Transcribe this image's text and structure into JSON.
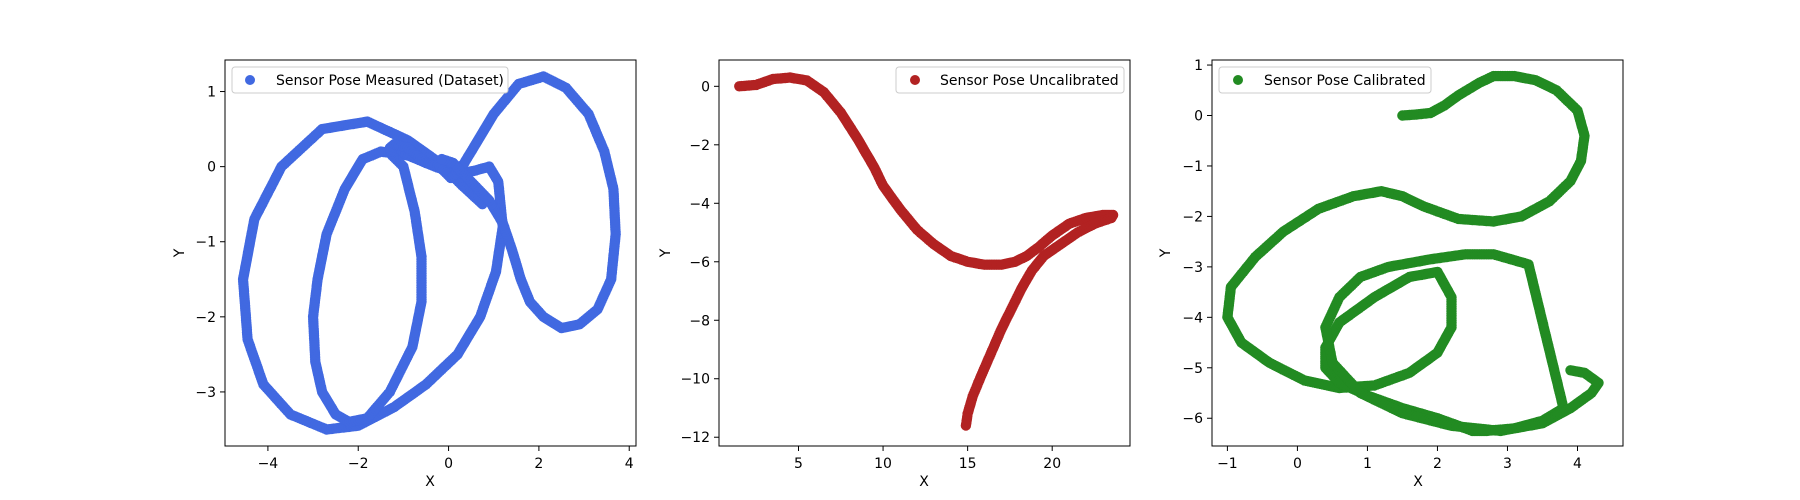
{
  "chart_data": [
    {
      "type": "scatter",
      "title": "",
      "xlabel": "X",
      "ylabel": "Y",
      "xlim": [
        -4.95,
        4.15
      ],
      "ylim": [
        -3.72,
        1.42
      ],
      "xticks": [
        -4,
        -2,
        0,
        2,
        4
      ],
      "yticks": [
        -3,
        -2,
        -1,
        0,
        1
      ],
      "legend_position": "upper-left",
      "series": [
        {
          "name": "Sensor Pose Measured (Dataset)",
          "color": "#4169e1",
          "x": [
            0.75,
            0.3,
            -0.2,
            -0.9,
            -1.8,
            -2.8,
            -3.7,
            -4.3,
            -4.55,
            -4.45,
            -4.1,
            -3.5,
            -2.7,
            -2.0,
            -1.2,
            -0.5,
            0.2,
            0.7,
            1.05,
            1.2,
            1.1,
            0.9,
            0.6,
            0.2,
            -0.3,
            -0.9,
            -1.5,
            -1.9,
            -2.3,
            -2.7,
            -2.9,
            -3.0,
            -2.95,
            -2.8,
            -2.5,
            -2.2,
            -1.8,
            -1.3,
            -0.8,
            -0.6,
            -0.6,
            -0.75,
            -1.0,
            -1.25,
            -1.3,
            -1.2,
            -0.9,
            -0.5,
            -0.2,
            0.05,
            0.15,
            0.35,
            0.6,
            1.0,
            1.55,
            2.1,
            2.6,
            3.1,
            3.45,
            3.65,
            3.7,
            3.6,
            3.3,
            2.9,
            2.5,
            2.1,
            1.8,
            1.6,
            1.4,
            1.2,
            0.9,
            0.5,
            0.1,
            -0.15
          ],
          "y": [
            -0.5,
            -0.25,
            0.05,
            0.35,
            0.6,
            0.5,
            0.0,
            -0.7,
            -1.5,
            -2.3,
            -2.9,
            -3.3,
            -3.5,
            -3.45,
            -3.2,
            -2.9,
            -2.5,
            -2.0,
            -1.4,
            -0.8,
            -0.2,
            0.0,
            -0.05,
            -0.1,
            0.0,
            0.15,
            0.2,
            0.1,
            -0.3,
            -0.9,
            -1.5,
            -2.0,
            -2.6,
            -3.0,
            -3.3,
            -3.4,
            -3.35,
            -3.0,
            -2.4,
            -1.8,
            -1.2,
            -0.6,
            0.0,
            0.15,
            0.25,
            0.3,
            0.25,
            0.05,
            0.0,
            -0.15,
            -0.1,
            0.05,
            0.3,
            0.7,
            1.1,
            1.2,
            1.05,
            0.7,
            0.2,
            -0.3,
            -0.9,
            -1.5,
            -1.9,
            -2.1,
            -2.15,
            -2.0,
            -1.8,
            -1.5,
            -1.1,
            -0.75,
            -0.45,
            -0.2,
            0.05,
            0.1
          ]
        }
      ]
    },
    {
      "type": "scatter",
      "title": "",
      "xlabel": "X",
      "ylabel": "Y",
      "xlim": [
        0.3,
        24.6
      ],
      "ylim": [
        -12.3,
        0.9
      ],
      "xticks": [
        5,
        10,
        15,
        20
      ],
      "yticks": [
        0,
        -2,
        -4,
        -6,
        -8,
        -10,
        -12
      ],
      "legend_position": "upper-right",
      "series": [
        {
          "name": "Sensor Pose Uncalibrated",
          "color": "#b22222",
          "x": [
            1.5,
            2.5,
            3.5,
            4.5,
            5.5,
            6.5,
            7.5,
            8.5,
            9.5,
            10.0,
            11.0,
            12.0,
            13.0,
            14.0,
            15.0,
            16.0,
            17.0,
            17.8,
            18.5,
            19.2,
            20.0,
            21.0,
            22.0,
            23.0,
            23.6,
            23.5,
            22.5,
            21.5,
            20.5,
            19.5,
            18.8,
            18.2,
            17.6,
            17.0,
            16.4,
            15.8,
            15.3,
            15.0,
            14.9
          ],
          "y": [
            0.0,
            0.05,
            0.25,
            0.3,
            0.2,
            -0.2,
            -0.9,
            -1.8,
            -2.8,
            -3.4,
            -4.2,
            -4.9,
            -5.4,
            -5.8,
            -6.0,
            -6.1,
            -6.1,
            -6.0,
            -5.8,
            -5.5,
            -5.1,
            -4.7,
            -4.5,
            -4.4,
            -4.4,
            -4.5,
            -4.7,
            -5.0,
            -5.4,
            -5.8,
            -6.3,
            -6.9,
            -7.6,
            -8.3,
            -9.1,
            -9.9,
            -10.6,
            -11.2,
            -11.6
          ]
        }
      ]
    },
    {
      "type": "scatter",
      "title": "",
      "xlabel": "X",
      "ylabel": "Y",
      "xlim": [
        -1.22,
        4.65
      ],
      "ylim": [
        -6.55,
        1.1
      ],
      "xticks": [
        -1,
        0,
        1,
        2,
        3,
        4
      ],
      "yticks": [
        1,
        0,
        -1,
        -2,
        -3,
        -4,
        -5,
        -6
      ],
      "legend_position": "upper-left",
      "series": [
        {
          "name": "Sensor Pose Calibrated",
          "color": "#228b22",
          "x": [
            1.5,
            1.7,
            1.9,
            2.1,
            2.3,
            2.6,
            2.8,
            3.1,
            3.4,
            3.7,
            4.0,
            4.1,
            4.05,
            3.9,
            3.6,
            3.2,
            2.8,
            2.3,
            1.8,
            1.5,
            1.2,
            0.8,
            0.3,
            -0.2,
            -0.6,
            -0.95,
            -1.0,
            -0.8,
            -0.4,
            0.1,
            0.6,
            1.1,
            1.6,
            2.0,
            2.2,
            2.2,
            2.0,
            1.6,
            1.1,
            0.6,
            0.4,
            0.4,
            0.6,
            1.0,
            1.5,
            2.0,
            2.3,
            2.5,
            2.7,
            3.1,
            3.5,
            3.8,
            3.3,
            2.8,
            2.4,
            1.9,
            1.3,
            0.9,
            0.6,
            0.4,
            0.5,
            0.9,
            1.5,
            2.2,
            2.9,
            3.5,
            3.9,
            4.2,
            4.3,
            4.1,
            3.9
          ],
          "y": [
            0.0,
            0.02,
            0.05,
            0.2,
            0.4,
            0.65,
            0.78,
            0.78,
            0.7,
            0.5,
            0.1,
            -0.4,
            -0.9,
            -1.3,
            -1.7,
            -2.0,
            -2.1,
            -2.05,
            -1.8,
            -1.6,
            -1.5,
            -1.6,
            -1.85,
            -2.3,
            -2.8,
            -3.4,
            -4.0,
            -4.5,
            -4.9,
            -5.25,
            -5.4,
            -5.35,
            -5.1,
            -4.7,
            -4.2,
            -3.6,
            -3.1,
            -3.2,
            -3.6,
            -4.1,
            -4.6,
            -5.0,
            -5.3,
            -5.55,
            -5.8,
            -6.0,
            -6.15,
            -6.25,
            -6.25,
            -6.2,
            -6.05,
            -5.8,
            -2.95,
            -2.75,
            -2.75,
            -2.85,
            -3.0,
            -3.2,
            -3.6,
            -4.2,
            -4.9,
            -5.5,
            -5.9,
            -6.15,
            -6.25,
            -6.1,
            -5.8,
            -5.5,
            -5.3,
            -5.1,
            -5.05
          ]
        }
      ]
    }
  ]
}
